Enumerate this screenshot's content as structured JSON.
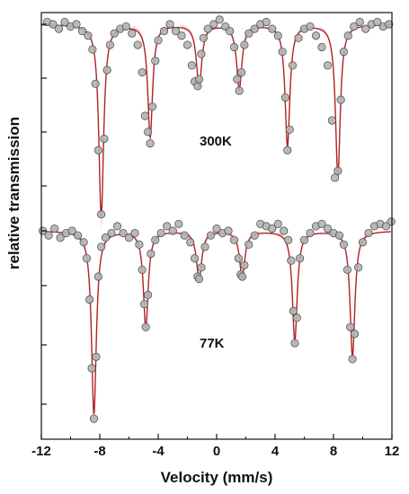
{
  "chart_data": {
    "type": "scatter",
    "title": "",
    "xlabel": "Velocity (mm/s)",
    "ylabel": "relative transmission",
    "xlim": [
      -12,
      12
    ],
    "xticks": [
      -12,
      -8,
      -4,
      0,
      4,
      8,
      12
    ],
    "ylim": [
      -1.72,
      0.08
    ],
    "yticks": [
      0.0,
      -0.25,
      -0.5,
      -0.75,
      -1.0,
      -1.25,
      -1.5
    ],
    "ytick_labels_shown": false,
    "grid": false,
    "legend": "none",
    "point_color": "#b3b3b3",
    "point_edge_color": "#555555",
    "fit_color": "#b22222",
    "subspectra_color": "#f2b8c4",
    "series": [
      {
        "name": "300K",
        "annotation": "300K",
        "sextet": {
          "positions": [
            -7.9,
            -4.55,
            -1.2,
            1.55,
            4.85,
            8.3
          ],
          "depths": [
            0.84,
            0.49,
            0.27,
            0.28,
            0.53,
            0.66
          ],
          "widths": [
            0.2,
            0.2,
            0.22,
            0.22,
            0.2,
            0.2
          ]
        },
        "x": [
          -11.6,
          -11.2,
          -10.8,
          -10.4,
          -10.0,
          -9.6,
          -9.2,
          -8.8,
          -8.5,
          -8.3,
          -8.1,
          -7.9,
          -7.7,
          -7.5,
          -7.3,
          -7.0,
          -6.6,
          -6.2,
          -5.8,
          -5.4,
          -5.1,
          -4.9,
          -4.7,
          -4.55,
          -4.4,
          -4.2,
          -4.0,
          -3.6,
          -3.2,
          -2.8,
          -2.4,
          -2.0,
          -1.7,
          -1.5,
          -1.3,
          -1.2,
          -1.05,
          -0.9,
          -0.6,
          -0.2,
          0.2,
          0.6,
          0.9,
          1.2,
          1.4,
          1.55,
          1.7,
          1.9,
          2.2,
          2.6,
          3.0,
          3.4,
          3.8,
          4.2,
          4.5,
          4.7,
          4.85,
          5.0,
          5.2,
          5.6,
          6.0,
          6.4,
          6.8,
          7.2,
          7.6,
          7.9,
          8.1,
          8.3,
          8.5,
          8.7,
          9.0,
          9.4,
          9.8,
          10.2,
          10.6,
          11.0,
          11.4,
          11.8
        ],
        "y": [
          0.01,
          0.0,
          -0.02,
          0.01,
          -0.01,
          0.0,
          -0.03,
          -0.05,
          -0.11,
          -0.26,
          -0.55,
          -0.83,
          -0.5,
          -0.2,
          -0.09,
          -0.04,
          -0.02,
          -0.01,
          -0.04,
          -0.09,
          -0.21,
          -0.4,
          -0.47,
          -0.52,
          -0.36,
          -0.16,
          -0.07,
          -0.03,
          0.0,
          -0.03,
          -0.05,
          -0.09,
          -0.18,
          -0.25,
          -0.27,
          -0.24,
          -0.13,
          -0.06,
          -0.02,
          0.0,
          0.02,
          -0.01,
          -0.03,
          -0.1,
          -0.24,
          -0.29,
          -0.21,
          -0.09,
          -0.04,
          -0.02,
          0.0,
          0.01,
          -0.02,
          -0.05,
          -0.12,
          -0.32,
          -0.55,
          -0.46,
          -0.18,
          -0.06,
          -0.02,
          -0.01,
          -0.05,
          -0.1,
          -0.18,
          -0.42,
          -0.67,
          -0.64,
          -0.33,
          -0.12,
          -0.05,
          -0.01,
          0.01,
          -0.02,
          0.0,
          0.01,
          -0.01,
          0.0
        ]
      },
      {
        "name": "77K",
        "annotation": "77K",
        "sextet": {
          "positions": [
            -8.4,
            -4.85,
            -1.2,
            1.75,
            5.35,
            9.3
          ],
          "depths": [
            0.8,
            0.42,
            0.21,
            0.2,
            0.48,
            0.55
          ],
          "widths": [
            0.2,
            0.2,
            0.22,
            0.22,
            0.2,
            0.2
          ]
        },
        "x": [
          -11.9,
          -11.5,
          -11.1,
          -10.7,
          -10.3,
          -9.9,
          -9.5,
          -9.1,
          -8.9,
          -8.7,
          -8.55,
          -8.4,
          -8.25,
          -8.1,
          -7.9,
          -7.6,
          -7.2,
          -6.8,
          -6.4,
          -6.0,
          -5.6,
          -5.3,
          -5.1,
          -4.95,
          -4.85,
          -4.7,
          -4.5,
          -4.2,
          -3.8,
          -3.4,
          -3.0,
          -2.6,
          -2.2,
          -1.8,
          -1.5,
          -1.3,
          -1.2,
          -1.05,
          -0.8,
          -0.4,
          0.0,
          0.4,
          0.8,
          1.2,
          1.5,
          1.65,
          1.75,
          1.9,
          2.2,
          2.6,
          3.0,
          3.4,
          3.8,
          4.2,
          4.6,
          4.9,
          5.1,
          5.25,
          5.35,
          5.5,
          5.7,
          6.0,
          6.4,
          6.8,
          7.2,
          7.6,
          8.0,
          8.4,
          8.7,
          8.95,
          9.15,
          9.3,
          9.45,
          9.7,
          10.0,
          10.4,
          10.8,
          11.2,
          11.6,
          11.95
        ],
        "y": [
          0.0,
          -0.02,
          0.01,
          -0.03,
          -0.01,
          0.0,
          -0.02,
          -0.05,
          -0.12,
          -0.3,
          -0.6,
          -0.82,
          -0.55,
          -0.2,
          -0.07,
          -0.03,
          -0.01,
          0.02,
          -0.01,
          -0.03,
          -0.01,
          -0.06,
          -0.17,
          -0.32,
          -0.42,
          -0.28,
          -0.1,
          -0.04,
          -0.01,
          0.02,
          0.0,
          0.03,
          -0.02,
          -0.05,
          -0.12,
          -0.2,
          -0.21,
          -0.16,
          -0.07,
          -0.02,
          0.01,
          -0.01,
          0.0,
          -0.04,
          -0.12,
          -0.19,
          -0.2,
          -0.15,
          -0.06,
          -0.02,
          0.03,
          0.02,
          0.01,
          0.03,
          0.0,
          -0.04,
          -0.13,
          -0.35,
          -0.49,
          -0.38,
          -0.12,
          -0.04,
          -0.01,
          0.02,
          0.03,
          0.01,
          -0.01,
          -0.02,
          -0.06,
          -0.17,
          -0.42,
          -0.56,
          -0.45,
          -0.16,
          -0.05,
          -0.01,
          0.02,
          0.03,
          0.02,
          0.04
        ]
      }
    ]
  }
}
